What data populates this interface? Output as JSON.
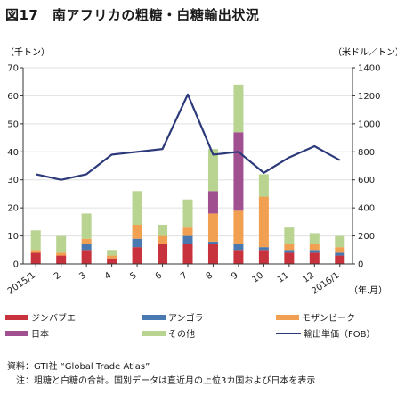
{
  "title": "図17　南アフリカの粗糖・白糖輸出状況",
  "source": "資料：GTI社 “Global Trade Atlas”",
  "note": "注：粗糖と白糖の合計。国別データは直近月の上位3カ国および日本を表示",
  "colors": {
    "zimbabwe": "#c8323c",
    "angola": "#4a78b0",
    "mozambique": "#f0a050",
    "japan": "#a0508f",
    "others": "#b8d490",
    "price_line": "#2c3a7a",
    "axis": "#333333",
    "grid": "#e0e0e0"
  },
  "chart_data": {
    "type": "bar",
    "stacked": true,
    "categories": [
      "2015/1",
      "2",
      "3",
      "4",
      "5",
      "6",
      "7",
      "8",
      "9",
      "10",
      "11",
      "12",
      "2016/1"
    ],
    "x_tick_labels": [
      "2015/1",
      "2",
      "3",
      "4",
      "5",
      "6",
      "7",
      "8",
      "9",
      "10",
      "11",
      "12",
      "2016/1"
    ],
    "xlabel": "（年.月）",
    "ylabel_left": "（千トン）",
    "ylabel_right": "（米ドル／トン）",
    "ylim_left": [
      0,
      70
    ],
    "yticks_left": [
      0,
      10,
      20,
      30,
      40,
      50,
      60,
      70
    ],
    "ylim_right": [
      0,
      1400
    ],
    "yticks_right": [
      0,
      200,
      400,
      600,
      800,
      1000,
      1200,
      1400
    ],
    "series": [
      {
        "name": "ジンバブエ",
        "key": "zimbabwe",
        "values": [
          4,
          3,
          5,
          2,
          6,
          7,
          7,
          7,
          5,
          5,
          4,
          4,
          3
        ]
      },
      {
        "name": "アンゴラ",
        "key": "angola",
        "values": [
          0,
          0,
          2,
          0,
          3,
          0,
          3,
          1,
          2,
          1,
          1,
          1,
          1
        ]
      },
      {
        "name": "モザンビーク",
        "key": "mozambique",
        "values": [
          1,
          1,
          2,
          1,
          5,
          3,
          3,
          10,
          12,
          18,
          2,
          2,
          2
        ]
      },
      {
        "name": "日本",
        "key": "japan",
        "values": [
          0,
          0,
          0,
          0,
          0,
          0,
          0,
          8,
          28,
          0,
          0,
          0,
          0
        ]
      },
      {
        "name": "その他",
        "key": "others",
        "values": [
          7,
          6,
          9,
          2,
          12,
          4,
          10,
          15,
          17,
          8,
          6,
          4,
          4
        ]
      }
    ],
    "line": {
      "name": "輸出単価（FOB）",
      "axis": "right",
      "values": [
        640,
        600,
        640,
        780,
        800,
        820,
        1210,
        780,
        800,
        650,
        760,
        840,
        740
      ]
    },
    "legend_position": "bottom"
  }
}
